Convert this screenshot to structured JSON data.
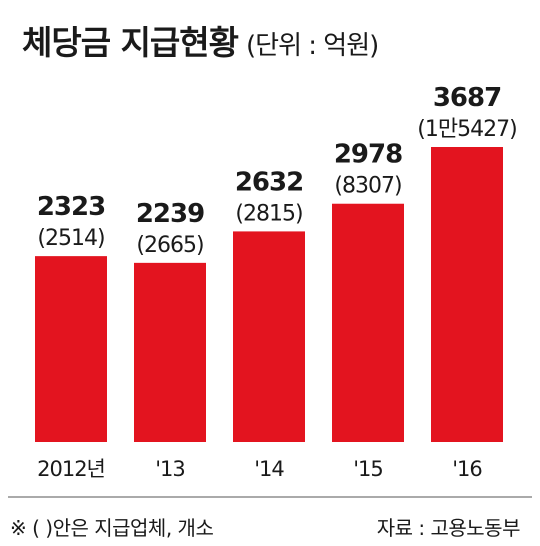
{
  "title": "체당금 지급현황",
  "unit": "(단위 : 억원)",
  "footnote": "※ ( )안은 지급업체, 개소",
  "source": "자료 : 고용노동부",
  "colors": {
    "bar": "#e3141f",
    "text": "#1a1a1a",
    "axis": "#555555"
  },
  "chart_data": {
    "type": "bar",
    "categories": [
      "2012년",
      "'13",
      "'14",
      "'15",
      "'16"
    ],
    "series": [
      {
        "name": "",
        "values": [
          2323,
          2239,
          2632,
          2978,
          3687
        ]
      }
    ],
    "data_labels": [
      "2323",
      "2239",
      "2632",
      "2978",
      "3687"
    ],
    "sub_labels": [
      "(2514)",
      "(2665)",
      "(2815)",
      "(8307)",
      "(1만5427)"
    ],
    "title": "체당금 지급현황",
    "xlabel": "",
    "ylabel": "",
    "ylim": [
      0,
      3687
    ],
    "grid": false
  }
}
